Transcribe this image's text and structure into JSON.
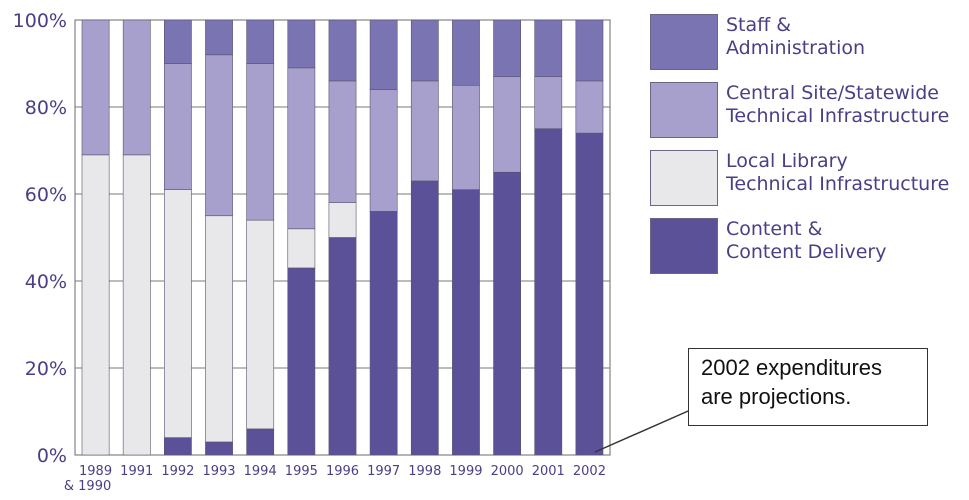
{
  "chart_data": {
    "type": "bar",
    "stacked": true,
    "normalized": true,
    "categories": [
      "1989\n& 1990",
      "1991",
      "1992",
      "1993",
      "1994",
      "1995",
      "1996",
      "1997",
      "1998",
      "1999",
      "2000",
      "2001",
      "2002"
    ],
    "series": [
      {
        "name": "Content & Content Delivery",
        "color": "#5a5199",
        "values": [
          0,
          0,
          4,
          3,
          6,
          43,
          50,
          56,
          63,
          61,
          65,
          75,
          74
        ]
      },
      {
        "name": "Local Library Technical Infrastructure",
        "color": "#e8e8ea",
        "values": [
          69,
          69,
          57,
          52,
          48,
          9,
          8,
          0,
          0,
          0,
          0,
          0,
          0
        ]
      },
      {
        "name": "Central Site/Statewide Technical Infrastructure",
        "color": "#a7a0cc",
        "values": [
          31,
          31,
          29,
          37,
          36,
          37,
          28,
          28,
          23,
          24,
          22,
          12,
          12
        ]
      },
      {
        "name": "Staff & Administration",
        "color": "#7b74b2",
        "values": [
          0,
          0,
          10,
          8,
          10,
          11,
          14,
          16,
          14,
          15,
          13,
          13,
          14
        ]
      }
    ],
    "yticks": [
      "0%",
      "20%",
      "40%",
      "60%",
      "80%",
      "100%"
    ],
    "ylim": [
      0,
      100
    ],
    "legend_position": "right"
  },
  "legend": [
    {
      "label": "Staff &\nAdministration",
      "color": "#7b74b2"
    },
    {
      "label": "Central Site/Statewide\nTechnical Infrastructure",
      "color": "#a7a0cc"
    },
    {
      "label": "Local Library\nTechnical Infrastructure",
      "color": "#e8e8ea"
    },
    {
      "label": "Content &\nContent Delivery",
      "color": "#5a5199"
    }
  ],
  "annotation": "2002 expenditures\nare projections."
}
